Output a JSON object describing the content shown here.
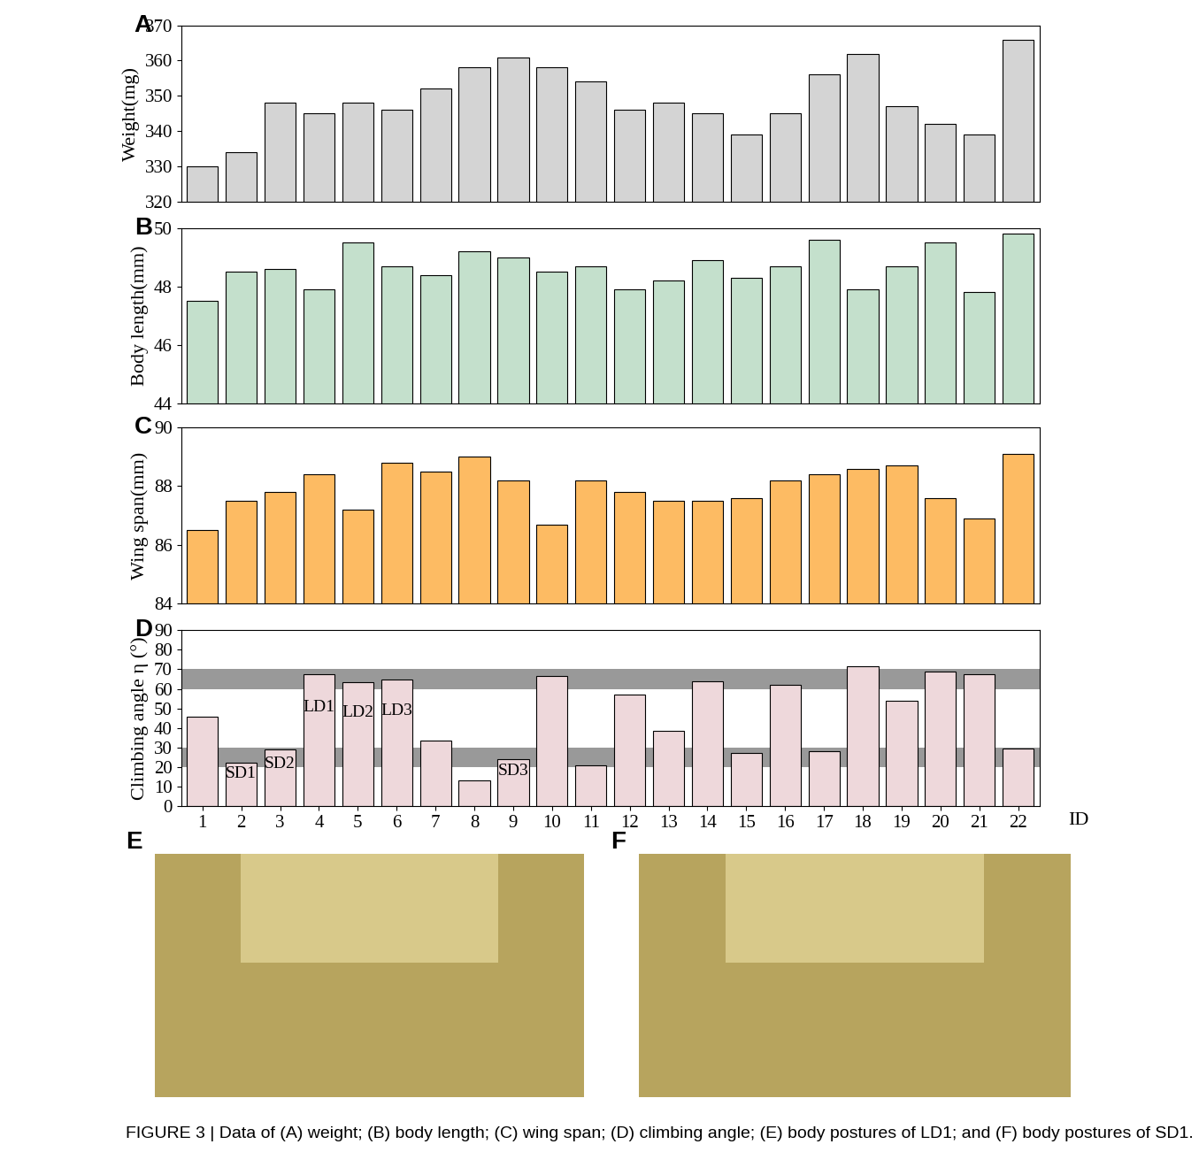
{
  "chart_data": [
    {
      "type": "bar",
      "title": "A",
      "y_label": "Weight(mg)",
      "x": [
        1,
        2,
        3,
        4,
        5,
        6,
        7,
        8,
        9,
        10,
        11,
        12,
        13,
        14,
        15,
        16,
        17,
        18,
        19,
        20,
        21,
        22
      ],
      "values": [
        330,
        334,
        348,
        345,
        348,
        346,
        352,
        358,
        361,
        358,
        354,
        346,
        348,
        345,
        339,
        345,
        356,
        362,
        347,
        342,
        339,
        366
      ],
      "color": "#d4d4d4",
      "xlim": [
        0.45,
        22.55
      ],
      "xticks": [
        1,
        2,
        3,
        4,
        5,
        6,
        7,
        8,
        9,
        10,
        11,
        12,
        13,
        14,
        15,
        16,
        17,
        18,
        19,
        20,
        21,
        22
      ],
      "ylim": [
        320,
        370
      ],
      "yticks": [
        320,
        330,
        340,
        350,
        360,
        370
      ],
      "tick_labels": "y"
    },
    {
      "type": "bar",
      "title": "B",
      "y_label": "Body length(mm)",
      "x": [
        1,
        2,
        3,
        4,
        5,
        6,
        7,
        8,
        9,
        10,
        11,
        12,
        13,
        14,
        15,
        16,
        17,
        18,
        19,
        20,
        21,
        22
      ],
      "values": [
        47.5,
        48.5,
        48.6,
        47.9,
        49.5,
        48.7,
        48.4,
        49.2,
        49.0,
        48.5,
        48.7,
        47.9,
        48.2,
        48.9,
        48.3,
        48.7,
        49.6,
        47.9,
        48.7,
        49.5,
        47.8,
        49.8
      ],
      "color": "#c4e0cc",
      "xlim": [
        0.45,
        22.55
      ],
      "xticks": [
        1,
        2,
        3,
        4,
        5,
        6,
        7,
        8,
        9,
        10,
        11,
        12,
        13,
        14,
        15,
        16,
        17,
        18,
        19,
        20,
        21,
        22
      ],
      "ylim": [
        44,
        50
      ],
      "yticks": [
        44,
        46,
        48,
        50
      ],
      "tick_labels": "y"
    },
    {
      "type": "bar",
      "title": "C",
      "y_label": "Wing span(mm)",
      "x": [
        1,
        2,
        3,
        4,
        5,
        6,
        7,
        8,
        9,
        10,
        11,
        12,
        13,
        14,
        15,
        16,
        17,
        18,
        19,
        20,
        21,
        22
      ],
      "values": [
        86.5,
        87.5,
        87.8,
        88.4,
        87.2,
        88.8,
        88.5,
        89.0,
        88.2,
        86.7,
        88.2,
        87.8,
        87.5,
        87.5,
        87.6,
        88.2,
        88.4,
        88.6,
        88.7,
        87.6,
        86.9,
        89.1
      ],
      "color": "#fdbb63",
      "xlim": [
        0.45,
        22.55
      ],
      "xticks": [
        1,
        2,
        3,
        4,
        5,
        6,
        7,
        8,
        9,
        10,
        11,
        12,
        13,
        14,
        15,
        16,
        17,
        18,
        19,
        20,
        21,
        22
      ],
      "ylim": [
        84,
        90
      ],
      "yticks": [
        84,
        86,
        88,
        90
      ],
      "tick_labels": "y"
    },
    {
      "type": "bar",
      "title": "D",
      "y_label": "Climbing angle η (°)",
      "x_label": "ID",
      "x": [
        1,
        2,
        3,
        4,
        5,
        6,
        7,
        8,
        9,
        10,
        11,
        12,
        13,
        14,
        15,
        16,
        17,
        18,
        19,
        20,
        21,
        22
      ],
      "values": [
        46,
        22.5,
        29,
        67.5,
        63.5,
        65,
        33.5,
        13.5,
        24,
        66.5,
        21,
        57,
        38.5,
        64,
        27.5,
        62,
        28,
        71.5,
        54,
        69,
        67.5,
        29.5
      ],
      "color": "#eed8db",
      "xlim": [
        0.45,
        22.55
      ],
      "xticks": [
        1,
        2,
        3,
        4,
        5,
        6,
        7,
        8,
        9,
        10,
        11,
        12,
        13,
        14,
        15,
        16,
        17,
        18,
        19,
        20,
        21,
        22
      ],
      "ylim": [
        0,
        90
      ],
      "yticks": [
        0,
        10,
        20,
        30,
        40,
        50,
        60,
        70,
        80,
        90
      ],
      "bands": [
        [
          20,
          30
        ],
        [
          60,
          70
        ]
      ],
      "band_color": "#999999",
      "annotations": [
        {
          "x": 2,
          "label": "SD1"
        },
        {
          "x": 3,
          "label": "SD2"
        },
        {
          "x": 4,
          "label": "LD1"
        },
        {
          "x": 5,
          "label": "LD2"
        },
        {
          "x": 6,
          "label": "LD3"
        },
        {
          "x": 9,
          "label": "SD3"
        }
      ]
    }
  ],
  "photos": [
    {
      "label": "E"
    },
    {
      "label": "F"
    }
  ],
  "caption": "FIGURE 3 | Data of (A) weight; (B) body length; (C) wing span; (D) climbing angle; (E) body postures of LD1; and (F) body postures of SD1."
}
